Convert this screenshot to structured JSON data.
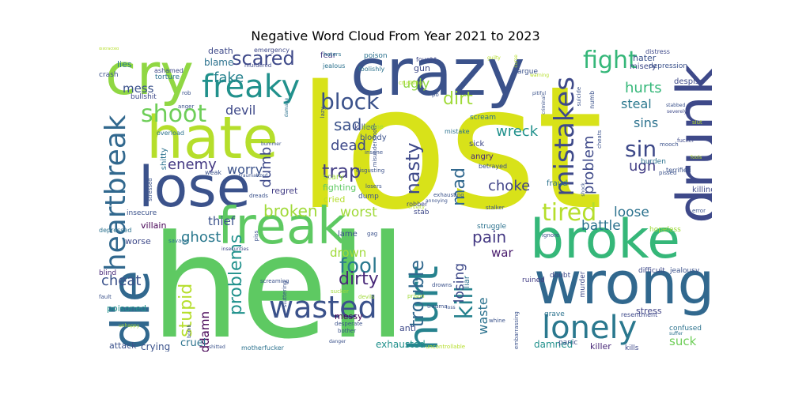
{
  "chart_data": {
    "type": "wordcloud",
    "title": "Negative Word Cloud From Year 2021 to 2023",
    "words": [
      {
        "text": "lost",
        "weight": 100,
        "color": "#d8e219"
      },
      {
        "text": "hell",
        "weight": 92,
        "color": "#5ec962"
      },
      {
        "text": "crazy",
        "weight": 46,
        "color": "#3b528b"
      },
      {
        "text": "hate",
        "weight": 42,
        "color": "#b5de2b"
      },
      {
        "text": "cry",
        "weight": 42,
        "color": "#90d743"
      },
      {
        "text": "lose",
        "weight": 40,
        "color": "#3b528b"
      },
      {
        "text": "wrong",
        "weight": 40,
        "color": "#31688e"
      },
      {
        "text": "drunk",
        "weight": 38,
        "color": "#3e4989"
      },
      {
        "text": "broke",
        "weight": 37,
        "color": "#35b779"
      },
      {
        "text": "die",
        "weight": 36,
        "color": "#31688e"
      },
      {
        "text": "freak",
        "weight": 34,
        "color": "#5ec962"
      },
      {
        "text": "hurt",
        "weight": 30,
        "color": "#26828e"
      },
      {
        "text": "freaky",
        "weight": 24,
        "color": "#21918c"
      },
      {
        "text": "heartbreak",
        "weight": 22,
        "color": "#31688e"
      },
      {
        "text": "lonely",
        "weight": 22,
        "color": "#2a788e"
      },
      {
        "text": "wasted",
        "weight": 20,
        "color": "#3b528b"
      },
      {
        "text": "mistakes",
        "weight": 18,
        "color": "#3e4989"
      },
      {
        "text": "fight",
        "weight": 17,
        "color": "#35b779"
      },
      {
        "text": "tired",
        "weight": 17,
        "color": "#b5de2b"
      },
      {
        "text": "shoot",
        "weight": 16,
        "color": "#6ece58"
      },
      {
        "text": "block",
        "weight": 16,
        "color": "#3b528b"
      },
      {
        "text": "scared",
        "weight": 14,
        "color": "#3e4989"
      },
      {
        "text": "sin",
        "weight": 16,
        "color": "#3e4989"
      },
      {
        "text": "kill",
        "weight": 15,
        "color": "#26828e"
      },
      {
        "text": "trouble",
        "weight": 14,
        "color": "#31688e"
      },
      {
        "text": "fool",
        "weight": 14,
        "color": "#2a788e"
      },
      {
        "text": "problems",
        "weight": 13,
        "color": "#21918c"
      },
      {
        "text": "nasty",
        "weight": 13,
        "color": "#3e4989"
      },
      {
        "text": "dirt",
        "weight": 13,
        "color": "#a0da39"
      },
      {
        "text": "mad",
        "weight": 12,
        "color": "#31688e"
      },
      {
        "text": "trap",
        "weight": 12,
        "color": "#433e85"
      },
      {
        "text": "stupid",
        "weight": 12,
        "color": "#b5de2b"
      },
      {
        "text": "broken",
        "weight": 11,
        "color": "#a0da39"
      },
      {
        "text": "dirty",
        "weight": 11,
        "color": "#482878"
      },
      {
        "text": "problem",
        "weight": 10,
        "color": "#3e4989"
      },
      {
        "text": "sad",
        "weight": 10,
        "color": "#3b528b"
      },
      {
        "text": "dead",
        "weight": 10,
        "color": "#3e4989"
      },
      {
        "text": "pain",
        "weight": 10,
        "color": "#443983"
      },
      {
        "text": "fake",
        "weight": 10,
        "color": "#26828e"
      },
      {
        "text": "mess",
        "weight": 9,
        "color": "#3b528b"
      },
      {
        "text": "hurts",
        "weight": 10,
        "color": "#35b779"
      },
      {
        "text": "devil",
        "weight": 10,
        "color": "#3e4989"
      },
      {
        "text": "enemy",
        "weight": 10,
        "color": "#443983"
      },
      {
        "text": "choke",
        "weight": 10,
        "color": "#414487"
      },
      {
        "text": "dumb",
        "weight": 10,
        "color": "#3e4989"
      },
      {
        "text": "worry",
        "weight": 9,
        "color": "#3b528b"
      },
      {
        "text": "ugh",
        "weight": 10,
        "color": "#433e85"
      },
      {
        "text": "sins",
        "weight": 9,
        "color": "#2c728e"
      },
      {
        "text": "wreck",
        "weight": 9,
        "color": "#21918c"
      },
      {
        "text": "cheat",
        "weight": 9,
        "color": "#3b528b"
      },
      {
        "text": "ghost",
        "weight": 10,
        "color": "#2a788e"
      },
      {
        "text": "losing",
        "weight": 9,
        "color": "#3e4989"
      },
      {
        "text": "battle",
        "weight": 9,
        "color": "#2c728e"
      },
      {
        "text": "loose",
        "weight": 9,
        "color": "#2c728e"
      },
      {
        "text": "worst",
        "weight": 9,
        "color": "#a0da39"
      },
      {
        "text": "drown",
        "weight": 8,
        "color": "#a0da39"
      },
      {
        "text": "waste",
        "weight": 8,
        "color": "#2c728e"
      },
      {
        "text": "goddamn",
        "weight": 8,
        "color": "#440154"
      },
      {
        "text": "steal",
        "weight": 8,
        "color": "#2a788e"
      },
      {
        "text": "thief",
        "weight": 8,
        "color": "#3b528b"
      },
      {
        "text": "war",
        "weight": 8,
        "color": "#481a6c"
      },
      {
        "text": "suck",
        "weight": 8,
        "color": "#6ece58"
      },
      {
        "text": "ugly",
        "weight": 7,
        "color": "#90d743"
      },
      {
        "text": "blame",
        "weight": 6,
        "color": "#2c728e"
      },
      {
        "text": "cruel",
        "weight": 6,
        "color": "#2c728e"
      },
      {
        "text": "cried",
        "weight": 5,
        "color": "#b5de2b"
      },
      {
        "text": "fighting",
        "weight": 5,
        "color": "#5ec962"
      },
      {
        "text": "worse",
        "weight": 5,
        "color": "#3e4989"
      },
      {
        "text": "villain",
        "weight": 5,
        "color": "#440154"
      },
      {
        "text": "messy",
        "weight": 5,
        "color": "#440154"
      },
      {
        "text": "crying",
        "weight": 5,
        "color": "#3b528b"
      },
      {
        "text": "killed",
        "weight": 5,
        "color": "#3e4989"
      },
      {
        "text": "exhausted",
        "weight": 5,
        "color": "#21918c"
      },
      {
        "text": "damned",
        "weight": 5,
        "color": "#21918c"
      },
      {
        "text": "killer",
        "weight": 5,
        "color": "#482878"
      },
      {
        "text": "stress",
        "weight": 5,
        "color": "#414487"
      },
      {
        "text": "fraud",
        "weight": 4,
        "color": "#2c728e"
      },
      {
        "text": "killing",
        "weight": 4,
        "color": "#3e4989"
      },
      {
        "text": "regret",
        "weight": 4,
        "color": "#433e85"
      },
      {
        "text": "lame",
        "weight": 4,
        "color": "#3b528b"
      },
      {
        "text": "liar",
        "weight": 4,
        "color": "#2c728e"
      },
      {
        "text": "sick",
        "weight": 4,
        "color": "#3e4989"
      },
      {
        "text": "angry",
        "weight": 4,
        "color": "#482878"
      },
      {
        "text": "poisoned",
        "weight": 4,
        "color": "#21918c"
      },
      {
        "text": "attack",
        "weight": 4,
        "color": "#3b528b"
      },
      {
        "text": "anti",
        "weight": 4,
        "color": "#3e4989"
      },
      {
        "text": "shitty",
        "weight": 4,
        "color": "#2c728e"
      },
      {
        "text": "lies",
        "weight": 4,
        "color": "#2a788e"
      },
      {
        "text": "death",
        "weight": 4,
        "color": "#3e4989"
      },
      {
        "text": "hater",
        "weight": 4,
        "color": "#3b528b"
      },
      {
        "text": "fear",
        "weight": 4,
        "color": "#443983"
      },
      {
        "text": "gun",
        "weight": 4,
        "color": "#3e4989"
      },
      {
        "text": "bloody",
        "weight": 4,
        "color": "#3b528b"
      },
      {
        "text": "misery",
        "weight": 4,
        "color": "#3e4989"
      },
      {
        "text": "despise",
        "weight": 4,
        "color": "#3e4989"
      },
      {
        "text": "struggle",
        "weight": 3,
        "color": "#2c728e"
      },
      {
        "text": "scary",
        "weight": 3,
        "color": "#a0da39"
      },
      {
        "text": "dump",
        "weight": 3,
        "color": "#3b528b"
      },
      {
        "text": "ruined",
        "weight": 3,
        "color": "#433e85"
      },
      {
        "text": "doubt",
        "weight": 3,
        "color": "#3e4989"
      },
      {
        "text": "insecure",
        "weight": 3,
        "color": "#3b528b"
      },
      {
        "text": "depressed",
        "weight": 3,
        "color": "#2c728e"
      },
      {
        "text": "blind",
        "weight": 3,
        "color": "#482878"
      },
      {
        "text": "grave",
        "weight": 3,
        "color": "#2c728e"
      },
      {
        "text": "stab",
        "weight": 3,
        "color": "#3e4989"
      },
      {
        "text": "panic",
        "weight": 3,
        "color": "#3b528b"
      },
      {
        "text": "confused",
        "weight": 3,
        "color": "#2c728e"
      },
      {
        "text": "kills",
        "weight": 3,
        "color": "#3e4989"
      },
      {
        "text": "jealousy",
        "weight": 3,
        "color": "#3b528b"
      },
      {
        "text": "difficult",
        "weight": 3,
        "color": "#3e4989"
      },
      {
        "text": "murder",
        "weight": 3,
        "color": "#3e4989"
      },
      {
        "text": "resentment",
        "weight": 3,
        "color": "#3e4989"
      },
      {
        "text": "hopeless",
        "weight": 3,
        "color": "#a0da39"
      },
      {
        "text": "burden",
        "weight": 3,
        "color": "#2c728e"
      },
      {
        "text": "terrified",
        "weight": 3,
        "color": "#3b528b"
      },
      {
        "text": "depression",
        "weight": 3,
        "color": "#3b528b"
      },
      {
        "text": "distress",
        "weight": 3,
        "color": "#3e4989"
      },
      {
        "text": "scream",
        "weight": 3,
        "color": "#2c728e"
      },
      {
        "text": "crash",
        "weight": 3,
        "color": "#3b528b"
      },
      {
        "text": "torture",
        "weight": 3,
        "color": "#2c728e"
      },
      {
        "text": "weak",
        "weight": 3,
        "color": "#3b528b"
      },
      {
        "text": "mistake",
        "weight": 3,
        "color": "#2c728e"
      },
      {
        "text": "robber",
        "weight": 3,
        "color": "#3e4989"
      },
      {
        "text": "poison",
        "weight": 3,
        "color": "#2c728e"
      },
      {
        "text": "fought",
        "weight": 3,
        "color": "#3e4989"
      },
      {
        "text": "argue",
        "weight": 3,
        "color": "#3b528b"
      },
      {
        "text": "betrayed",
        "weight": 3,
        "color": "#3b528b"
      },
      {
        "text": "stalker",
        "weight": 3,
        "color": "#3b528b"
      },
      {
        "text": "bullshit",
        "weight": 3,
        "color": "#3e4989"
      },
      {
        "text": "ashamed",
        "weight": 3,
        "color": "#3e4989"
      },
      {
        "text": "murdered",
        "weight": 2,
        "color": "#3e4989"
      },
      {
        "text": "emergency",
        "weight": 2,
        "color": "#3e4989"
      },
      {
        "text": "haters",
        "weight": 2,
        "color": "#2c728e"
      },
      {
        "text": "jealous",
        "weight": 2,
        "color": "#2c728e"
      },
      {
        "text": "foolishly",
        "weight": 2,
        "color": "#2c728e"
      },
      {
        "text": "insane",
        "weight": 2,
        "color": "#3b528b"
      },
      {
        "text": "lazy",
        "weight": 2,
        "color": "#3b528b"
      },
      {
        "text": "damage",
        "weight": 2,
        "color": "#2c728e"
      },
      {
        "text": "anger",
        "weight": 2,
        "color": "#3b528b"
      },
      {
        "text": "rob",
        "weight": 2,
        "color": "#3b528b"
      },
      {
        "text": "overload",
        "weight": 2,
        "color": "#2c728e"
      },
      {
        "text": "stressed",
        "weight": 2,
        "color": "#3b528b"
      },
      {
        "text": "traumatized",
        "weight": 2,
        "color": "#3b528b"
      },
      {
        "text": "dreads",
        "weight": 2,
        "color": "#3b528b"
      },
      {
        "text": "insecurities",
        "weight": 2,
        "color": "#3e4989"
      },
      {
        "text": "savage",
        "weight": 2,
        "color": "#2c728e"
      },
      {
        "text": "piss",
        "weight": 2,
        "color": "#3b528b"
      },
      {
        "text": "screaming",
        "weight": 2,
        "color": "#3b528b"
      },
      {
        "text": "stuttering",
        "weight": 2,
        "color": "#3b528b"
      },
      {
        "text": "misunderstood",
        "weight": 2,
        "color": "#3b528b"
      },
      {
        "text": "disgusting",
        "weight": 2,
        "color": "#3b528b"
      },
      {
        "text": "losers",
        "weight": 2,
        "color": "#3b528b"
      },
      {
        "text": "bummer",
        "weight": 2,
        "color": "#3b528b"
      },
      {
        "text": "shame",
        "weight": 2,
        "color": "#a0da39"
      },
      {
        "text": "gag",
        "weight": 2,
        "color": "#3b528b"
      },
      {
        "text": "annoying",
        "weight": 2,
        "color": "#3b528b"
      },
      {
        "text": "exhausting",
        "weight": 2,
        "color": "#3b528b"
      },
      {
        "text": "ignore",
        "weight": 2,
        "color": "#3b528b"
      },
      {
        "text": "prison",
        "weight": 2,
        "color": "#a0da39"
      },
      {
        "text": "trauma",
        "weight": 2,
        "color": "#3b528b"
      },
      {
        "text": "sucker",
        "weight": 2,
        "color": "#a0da39"
      },
      {
        "text": "devils",
        "weight": 2,
        "color": "#a0da39"
      },
      {
        "text": "drowns",
        "weight": 2,
        "color": "#3b528b"
      },
      {
        "text": "loss",
        "weight": 2,
        "color": "#3b528b"
      },
      {
        "text": "bother",
        "weight": 2,
        "color": "#3b528b"
      },
      {
        "text": "desperate",
        "weight": 2,
        "color": "#3b528b"
      },
      {
        "text": "danger",
        "weight": 2,
        "color": "#3b528b"
      },
      {
        "text": "motherfucker",
        "weight": 2,
        "color": "#2c728e"
      },
      {
        "text": "shitted",
        "weight": 2,
        "color": "#3b528b"
      },
      {
        "text": "uncontrollable",
        "weight": 2,
        "color": "#b5de2b"
      },
      {
        "text": "whine",
        "weight": 2,
        "color": "#3b528b"
      },
      {
        "text": "embarrassing",
        "weight": 2,
        "color": "#3b528b"
      },
      {
        "text": "unhappy",
        "weight": 2,
        "color": "#a0da39"
      },
      {
        "text": "fault",
        "weight": 2,
        "color": "#3b528b"
      },
      {
        "text": "bomb",
        "weight": 2,
        "color": "#3b528b"
      },
      {
        "text": "fucker",
        "weight": 2,
        "color": "#3e4989"
      },
      {
        "text": "slut",
        "weight": 2,
        "color": "#b5de2b"
      },
      {
        "text": "severely",
        "weight": 2,
        "color": "#3e4989"
      },
      {
        "text": "mooch",
        "weight": 2,
        "color": "#3b528b"
      },
      {
        "text": "pissed",
        "weight": 2,
        "color": "#3b528b"
      },
      {
        "text": "error",
        "weight": 2,
        "color": "#3b528b"
      },
      {
        "text": "shock",
        "weight": 2,
        "color": "#3b528b"
      },
      {
        "text": "cheats",
        "weight": 2,
        "color": "#3b528b"
      },
      {
        "text": "suffer",
        "weight": 2,
        "color": "#2c728e"
      },
      {
        "text": "stabbed",
        "weight": 2,
        "color": "#3b528b"
      },
      {
        "text": "pitiful",
        "weight": 2,
        "color": "#3b528b"
      },
      {
        "text": "numb",
        "weight": 2,
        "color": "#3b528b"
      },
      {
        "text": "criminal",
        "weight": 2,
        "color": "#3b528b"
      },
      {
        "text": "suicide",
        "weight": 2,
        "color": "#3b528b"
      },
      {
        "text": "cruelty",
        "weight": 2,
        "color": "#b5de2b"
      },
      {
        "text": "crushing",
        "weight": 2,
        "color": "#b5de2b"
      },
      {
        "text": "guilty",
        "weight": 2,
        "color": "#b5de2b"
      },
      {
        "text": "curse",
        "weight": 2,
        "color": "#b5de2b"
      },
      {
        "text": "warning",
        "weight": 2,
        "color": "#b5de2b"
      },
      {
        "text": "distracted",
        "weight": 2,
        "color": "#b5de2b"
      },
      {
        "text": "po",
        "weight": 2,
        "color": "#3b528b"
      },
      {
        "text": "fools",
        "weight": 2,
        "color": "#b5de2b"
      }
    ]
  }
}
